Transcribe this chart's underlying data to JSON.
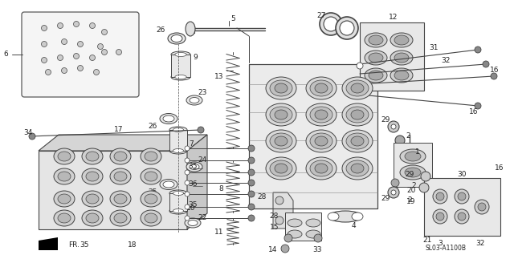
{
  "bg_color": "#ffffff",
  "diagram_code": "SL03-A1100B",
  "line_color": "#444444",
  "font_size": 6.5,
  "font_color": "#222222"
}
